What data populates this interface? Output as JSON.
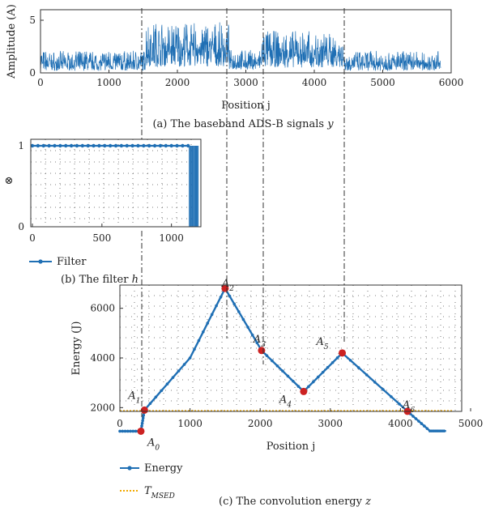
{
  "chart_data": [
    {
      "type": "line",
      "caption": "(a) The baseband ADS-B signals",
      "caption_var": "y",
      "xlabel": "Position j",
      "ylabel": "Amplitude (A)",
      "xlim": [
        0,
        6000
      ],
      "ylim": [
        0,
        6
      ],
      "xticks": [
        0,
        1000,
        2000,
        3000,
        4000,
        5000,
        6000
      ],
      "yticks": [
        0,
        5
      ],
      "color": "#1f6fb4",
      "segments": [
        {
          "x0": 0,
          "x1": 1530,
          "low": 0.2,
          "high": 2.1
        },
        {
          "x0": 1530,
          "x1": 2760,
          "low": 0.6,
          "high": 4.8
        },
        {
          "x0": 2760,
          "x1": 3230,
          "low": 0.3,
          "high": 2.2
        },
        {
          "x0": 3230,
          "x1": 4430,
          "low": 0.5,
          "high": 4.0
        },
        {
          "x0": 4430,
          "x1": 5850,
          "low": 0.2,
          "high": 2.1
        }
      ]
    },
    {
      "type": "line",
      "caption": "(b) The filter",
      "caption_var": "h",
      "xlabel": "",
      "ylabel": "⊗",
      "xlim": [
        0,
        1200
      ],
      "ylim": [
        0,
        1
      ],
      "xticks": [
        0,
        500,
        1000
      ],
      "yticks": [
        0,
        1
      ],
      "color": "#1f6fb4",
      "grid": true,
      "series": [
        {
          "name": "Filter",
          "x": [
            0,
            1130
          ],
          "y": [
            1,
            1
          ]
        }
      ],
      "pulses_x": [
        1130,
        1140,
        1150,
        1160,
        1165,
        1175,
        1180,
        1190
      ]
    },
    {
      "type": "line",
      "caption": "(c) The convolution energy",
      "caption_var": "z",
      "xlabel": "Position j",
      "ylabel": "Energy (J)",
      "xlim": [
        0,
        5000
      ],
      "ylim": [
        1000,
        7000
      ],
      "xticks": [
        0,
        1000,
        2000,
        3000,
        4000,
        5000
      ],
      "yticks": [
        2000,
        4000,
        6000
      ],
      "color": "#1f6fb4",
      "grid": true,
      "series": [
        {
          "name": "Energy",
          "x": [
            0,
            300,
            350,
            1000,
            1500,
            2020,
            2620,
            3170,
            4100,
            4420,
            4650
          ],
          "y": [
            1050,
            1050,
            1900,
            4000,
            6800,
            4300,
            2650,
            4200,
            1850,
            1060,
            1060
          ]
        }
      ],
      "threshold": {
        "name": "T",
        "subscript": "MSED",
        "y": 1870,
        "color": "#f2a900"
      },
      "points": [
        {
          "label": "A",
          "sub": "0",
          "x": 300,
          "y": 1050
        },
        {
          "label": "A",
          "sub": "1",
          "x": 350,
          "y": 1900
        },
        {
          "label": "A",
          "sub": "2",
          "x": 1500,
          "y": 6800
        },
        {
          "label": "A",
          "sub": "3",
          "x": 2020,
          "y": 4300
        },
        {
          "label": "A",
          "sub": "4",
          "x": 2620,
          "y": 2650
        },
        {
          "label": "A",
          "sub": "5",
          "x": 3170,
          "y": 4200
        },
        {
          "label": "A",
          "sub": "6",
          "x": 4100,
          "y": 1850
        }
      ],
      "point_color": "#cc2222"
    }
  ]
}
